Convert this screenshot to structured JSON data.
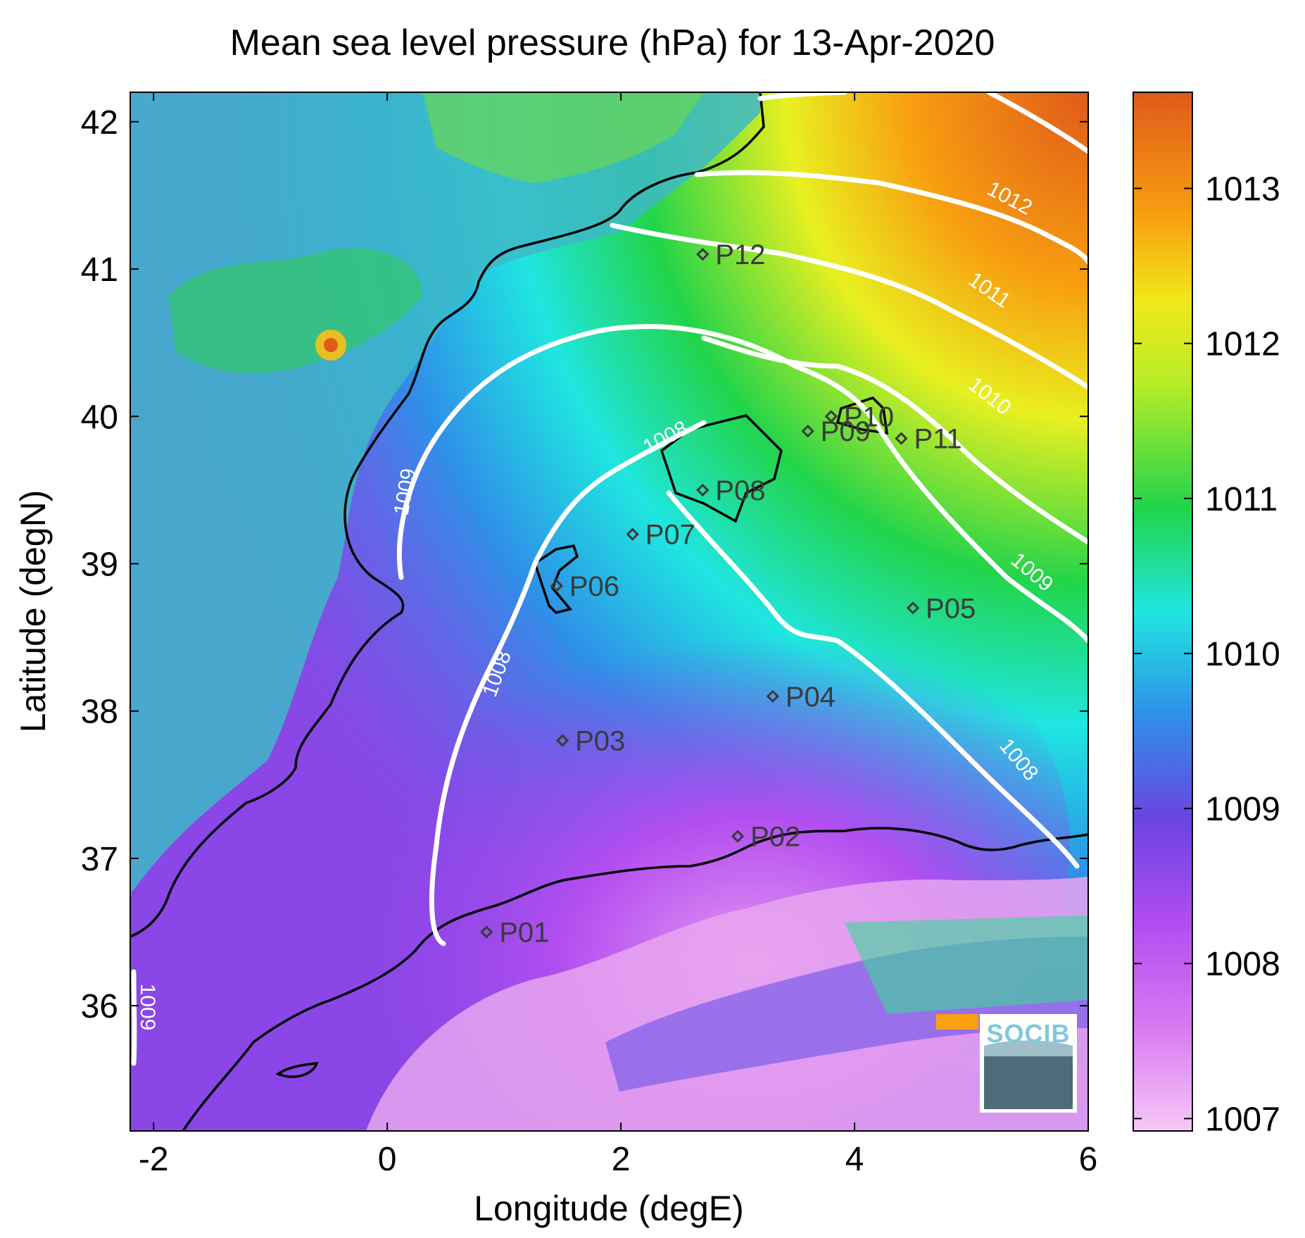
{
  "title": "Mean sea level pressure (hPa) for 13-Apr-2020",
  "x_axis": {
    "label": "Longitude (degE)",
    "ticks": [
      "-2",
      "0",
      "2",
      "4",
      "6"
    ]
  },
  "y_axis": {
    "label": "Latitude (degN)",
    "ticks": [
      "42",
      "41",
      "40",
      "39",
      "38",
      "37",
      "36"
    ]
  },
  "colorbar": {
    "ticks": [
      "1013",
      "1012",
      "1011",
      "1010",
      "1009",
      "1008",
      "1007"
    ]
  },
  "stations": [
    {
      "id": "P01",
      "label": "P01",
      "lon": 0.85,
      "lat": 36.5
    },
    {
      "id": "P02",
      "label": "P02",
      "lon": 3.0,
      "lat": 37.15
    },
    {
      "id": "P03",
      "label": "P03",
      "lon": 1.5,
      "lat": 37.8
    },
    {
      "id": "P04",
      "label": "P04",
      "lon": 3.3,
      "lat": 38.1
    },
    {
      "id": "P05",
      "label": "P05",
      "lon": 4.5,
      "lat": 38.7
    },
    {
      "id": "P06",
      "label": "P06",
      "lon": 1.45,
      "lat": 38.85
    },
    {
      "id": "P07",
      "label": "P07",
      "lon": 2.1,
      "lat": 39.2
    },
    {
      "id": "P08",
      "label": "P08",
      "lon": 2.7,
      "lat": 39.5
    },
    {
      "id": "P09",
      "label": "P09",
      "lon": 3.6,
      "lat": 39.9
    },
    {
      "id": "P10",
      "label": "P10",
      "lon": 3.8,
      "lat": 40.0
    },
    {
      "id": "P11",
      "label": "P11",
      "lon": 4.4,
      "lat": 39.85
    },
    {
      "id": "P12",
      "label": "P12",
      "lon": 2.7,
      "lat": 41.1
    }
  ],
  "contour_labels": [
    "1012",
    "1011",
    "1010",
    "1009",
    "1009",
    "1009",
    "1008",
    "1008",
    "1008",
    "1009"
  ],
  "logo": {
    "text": "SOCIB"
  },
  "colors": {
    "contour": "#ffffff",
    "coastline": "#000000",
    "colormap": [
      "#f6c8f6",
      "#c050f0",
      "#7a40e0",
      "#2f8fe8",
      "#1fe6e0",
      "#22d44a",
      "#e8f020",
      "#f8a010",
      "#e05a1a"
    ]
  }
}
